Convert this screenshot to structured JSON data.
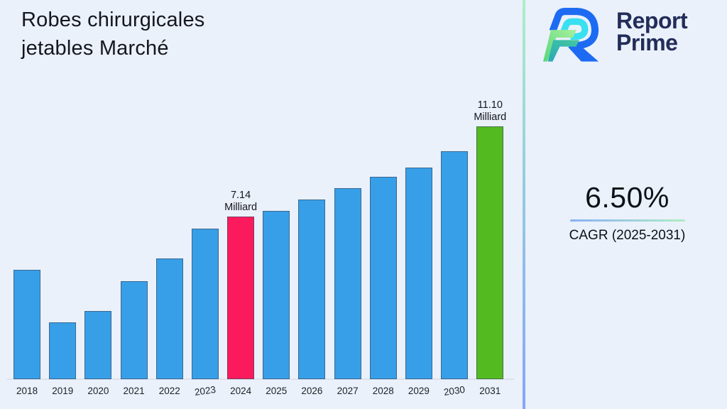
{
  "header": {
    "title": "Robes chirurgicales\njetables Marché"
  },
  "brand": {
    "line1": "Report",
    "line2": "Prime"
  },
  "cagr": {
    "value": "6.50%",
    "label": "CAGR (2025-2031)"
  },
  "colors": {
    "background": "#EAF1FB",
    "bar_blue": "#379FE8",
    "bar_pink": "#FB1A5C",
    "bar_green": "#53BA1F",
    "brand_navy": "#232D5A",
    "divider_top": "#ABEFC7",
    "divider_mid": "#97CBDF",
    "divider_bottom": "#86A5FA",
    "underline_left": "#8AB0F4",
    "underline_right": "#AEEDC4",
    "baseline": "#DCE2EC"
  },
  "chart_data": {
    "type": "bar",
    "title": "Robes chirurgicales jetables Marché",
    "xlabel": "",
    "ylabel": "",
    "unit": "Milliard",
    "grid": false,
    "legend": "none",
    "ylim": [
      0,
      11.1
    ],
    "categories": [
      "2018",
      "2019",
      "2020",
      "2021",
      "2022",
      "2023",
      "2024",
      "2025",
      "2026",
      "2027",
      "2028",
      "2029",
      "2030",
      "2031"
    ],
    "values": [
      4.8,
      2.5,
      3.0,
      4.3,
      5.3,
      6.6,
      7.14,
      7.4,
      7.9,
      8.4,
      8.9,
      9.3,
      10.0,
      11.1
    ],
    "colors": [
      "#379FE8",
      "#379FE8",
      "#379FE8",
      "#379FE8",
      "#379FE8",
      "#379FE8",
      "#FB1A5C",
      "#379FE8",
      "#379FE8",
      "#379FE8",
      "#379FE8",
      "#379FE8",
      "#379FE8",
      "#53BA1F"
    ],
    "annotations": [
      {
        "category": "2024",
        "text": "7.14 Milliard"
      },
      {
        "category": "2031",
        "text": "11.10 Milliard"
      }
    ]
  }
}
